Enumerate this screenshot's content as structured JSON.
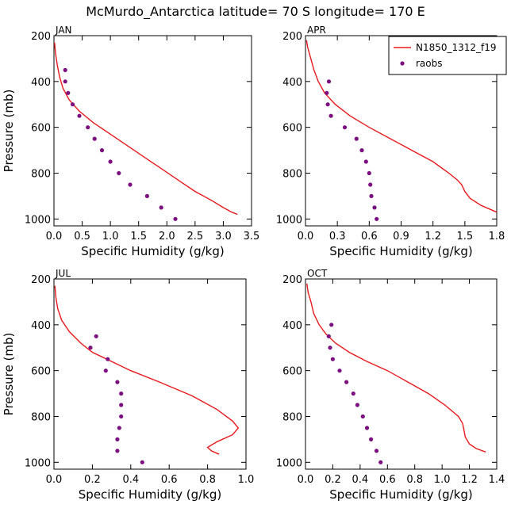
{
  "title": "McMurdo_Antarctica  latitude= 70 S longitude= 170 E",
  "legend": {
    "model_label": "N1850_1312_f19",
    "obs_label": "raobs"
  },
  "colors": {
    "model": "#e8191c",
    "obs": "#7b0f80"
  },
  "chart_data": [
    {
      "type": "line",
      "title": "JAN",
      "xlabel": "Specific Humidity (g/kg)",
      "ylabel": "Pressure (mb)",
      "xlim": [
        0,
        3.5
      ],
      "xticks": [
        "0.0",
        "0.5",
        "1.0",
        "1.5",
        "2.0",
        "2.5",
        "3.0",
        "3.5"
      ],
      "ylim": [
        200,
        1030
      ],
      "yticks": [
        "200",
        "400",
        "600",
        "800",
        "1000"
      ],
      "show_legend": false,
      "series": [
        {
          "name": "N1850_1312_f19",
          "kind": "line",
          "points": [
            [
              0.01,
              230
            ],
            [
              0.03,
              280
            ],
            [
              0.06,
              330
            ],
            [
              0.1,
              380
            ],
            [
              0.16,
              430
            ],
            [
              0.27,
              480
            ],
            [
              0.45,
              530
            ],
            [
              0.7,
              580
            ],
            [
              1.0,
              630
            ],
            [
              1.3,
              680
            ],
            [
              1.6,
              730
            ],
            [
              1.9,
              780
            ],
            [
              2.2,
              830
            ],
            [
              2.5,
              880
            ],
            [
              2.8,
              920
            ],
            [
              3.0,
              950
            ],
            [
              3.15,
              970
            ],
            [
              3.25,
              980
            ]
          ]
        },
        {
          "name": "raobs",
          "kind": "scatter",
          "points": [
            [
              0.2,
              350
            ],
            [
              0.2,
              400
            ],
            [
              0.25,
              450
            ],
            [
              0.33,
              500
            ],
            [
              0.45,
              550
            ],
            [
              0.6,
              600
            ],
            [
              0.72,
              650
            ],
            [
              0.85,
              700
            ],
            [
              1.0,
              750
            ],
            [
              1.15,
              800
            ],
            [
              1.35,
              850
            ],
            [
              1.65,
              900
            ],
            [
              1.9,
              950
            ],
            [
              2.15,
              1000
            ]
          ]
        }
      ]
    },
    {
      "type": "line",
      "title": "APR",
      "xlabel": "Specific Humidity (g/kg)",
      "ylabel": "",
      "xlim": [
        0,
        1.8
      ],
      "xticks": [
        "0.0",
        "0.3",
        "0.6",
        "0.9",
        "1.2",
        "1.5",
        "1.8"
      ],
      "ylim": [
        200,
        1030
      ],
      "yticks": [
        "200",
        "400",
        "600",
        "800",
        "1000"
      ],
      "show_legend": true,
      "series": [
        {
          "name": "N1850_1312_f19",
          "kind": "line",
          "points": [
            [
              0.01,
              220
            ],
            [
              0.02,
              250
            ],
            [
              0.05,
              300
            ],
            [
              0.08,
              350
            ],
            [
              0.12,
              400
            ],
            [
              0.18,
              450
            ],
            [
              0.28,
              500
            ],
            [
              0.42,
              550
            ],
            [
              0.6,
              600
            ],
            [
              0.8,
              650
            ],
            [
              1.0,
              700
            ],
            [
              1.2,
              750
            ],
            [
              1.35,
              800
            ],
            [
              1.43,
              830
            ],
            [
              1.47,
              850
            ],
            [
              1.5,
              880
            ],
            [
              1.55,
              910
            ],
            [
              1.65,
              940
            ],
            [
              1.75,
              960
            ],
            [
              1.8,
              970
            ]
          ]
        },
        {
          "name": "raobs",
          "kind": "scatter",
          "points": [
            [
              0.22,
              400
            ],
            [
              0.2,
              450
            ],
            [
              0.21,
              500
            ],
            [
              0.24,
              550
            ],
            [
              0.37,
              600
            ],
            [
              0.48,
              650
            ],
            [
              0.53,
              700
            ],
            [
              0.57,
              750
            ],
            [
              0.6,
              800
            ],
            [
              0.61,
              850
            ],
            [
              0.62,
              900
            ],
            [
              0.65,
              950
            ],
            [
              0.67,
              1000
            ]
          ]
        }
      ]
    },
    {
      "type": "line",
      "title": "JUL",
      "xlabel": "Specific Humidity (g/kg)",
      "ylabel": "Pressure (mb)",
      "xlim": [
        0,
        1.0
      ],
      "xticks": [
        "0.0",
        "0.2",
        "0.4",
        "0.6",
        "0.8",
        "1.0"
      ],
      "ylim": [
        200,
        1030
      ],
      "yticks": [
        "200",
        "400",
        "600",
        "800",
        "1000"
      ],
      "show_legend": false,
      "series": [
        {
          "name": "N1850_1312_f19",
          "kind": "line",
          "points": [
            [
              0.005,
              230
            ],
            [
              0.01,
              280
            ],
            [
              0.02,
              330
            ],
            [
              0.04,
              380
            ],
            [
              0.08,
              430
            ],
            [
              0.14,
              480
            ],
            [
              0.2,
              520
            ],
            [
              0.3,
              560
            ],
            [
              0.4,
              600
            ],
            [
              0.55,
              650
            ],
            [
              0.72,
              710
            ],
            [
              0.85,
              770
            ],
            [
              0.93,
              820
            ],
            [
              0.96,
              850
            ],
            [
              0.93,
              880
            ],
            [
              0.85,
              910
            ],
            [
              0.8,
              935
            ],
            [
              0.82,
              950
            ],
            [
              0.86,
              965
            ]
          ]
        },
        {
          "name": "raobs",
          "kind": "scatter",
          "points": [
            [
              0.22,
              450
            ],
            [
              0.19,
              500
            ],
            [
              0.28,
              550
            ],
            [
              0.27,
              600
            ],
            [
              0.33,
              650
            ],
            [
              0.35,
              700
            ],
            [
              0.35,
              750
            ],
            [
              0.35,
              800
            ],
            [
              0.34,
              850
            ],
            [
              0.33,
              900
            ],
            [
              0.33,
              950
            ],
            [
              0.46,
              1000
            ]
          ]
        }
      ]
    },
    {
      "type": "line",
      "title": "OCT",
      "xlabel": "Specific Humidity (g/kg)",
      "ylabel": "",
      "xlim": [
        0,
        1.4
      ],
      "xticks": [
        "0.0",
        "0.2",
        "0.4",
        "0.6",
        "0.8",
        "1.0",
        "1.2",
        "1.4"
      ],
      "ylim": [
        200,
        1030
      ],
      "yticks": [
        "200",
        "400",
        "600",
        "800",
        "1000"
      ],
      "show_legend": false,
      "series": [
        {
          "name": "N1850_1312_f19",
          "kind": "line",
          "points": [
            [
              0.01,
              220
            ],
            [
              0.02,
              260
            ],
            [
              0.04,
              300
            ],
            [
              0.06,
              350
            ],
            [
              0.1,
              400
            ],
            [
              0.15,
              440
            ],
            [
              0.22,
              480
            ],
            [
              0.32,
              520
            ],
            [
              0.45,
              560
            ],
            [
              0.6,
              600
            ],
            [
              0.75,
              650
            ],
            [
              0.9,
              700
            ],
            [
              1.02,
              750
            ],
            [
              1.12,
              800
            ],
            [
              1.15,
              830
            ],
            [
              1.16,
              860
            ],
            [
              1.17,
              890
            ],
            [
              1.2,
              920
            ],
            [
              1.25,
              940
            ],
            [
              1.32,
              955
            ]
          ]
        },
        {
          "name": "raobs",
          "kind": "scatter",
          "points": [
            [
              0.19,
              400
            ],
            [
              0.17,
              450
            ],
            [
              0.18,
              500
            ],
            [
              0.2,
              550
            ],
            [
              0.25,
              600
            ],
            [
              0.3,
              650
            ],
            [
              0.35,
              700
            ],
            [
              0.38,
              750
            ],
            [
              0.42,
              800
            ],
            [
              0.45,
              850
            ],
            [
              0.48,
              900
            ],
            [
              0.52,
              950
            ],
            [
              0.55,
              1000
            ]
          ]
        }
      ]
    }
  ]
}
